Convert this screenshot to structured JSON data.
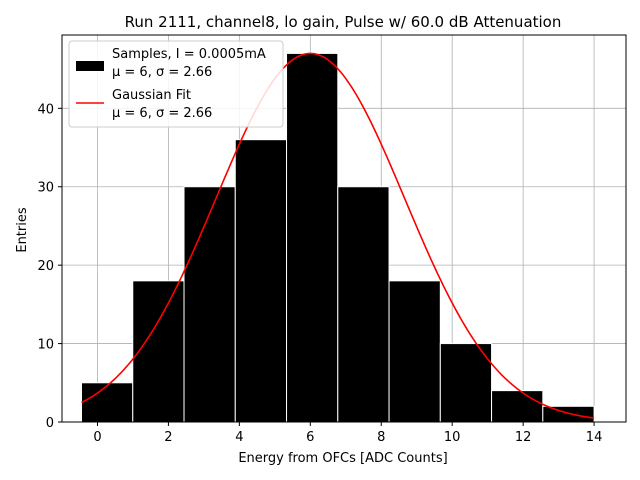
{
  "chart_data": {
    "type": "bar",
    "title": "Run 2111, channel8, lo gain, Pulse w/ 60.0 dB Attenuation",
    "xlabel": "Energy from OFCs [ADC Counts]",
    "ylabel": "Entries",
    "xlim": [
      -1.0,
      14.9
    ],
    "ylim": [
      0,
      49.35
    ],
    "xticks": [
      0,
      2,
      4,
      6,
      8,
      10,
      12,
      14
    ],
    "yticks": [
      0,
      10,
      20,
      30,
      40
    ],
    "grid": true,
    "legend_position": "top-left",
    "histogram": {
      "bin_edges": [
        -0.45,
        0.995,
        2.44,
        3.885,
        5.33,
        6.775,
        8.22,
        9.665,
        11.11,
        12.555,
        14.0
      ],
      "counts": [
        5,
        18,
        30,
        36,
        47,
        30,
        18,
        10,
        4,
        2
      ],
      "color": "#000000",
      "edge_color": "#ffffff"
    },
    "fit": {
      "type": "gaussian",
      "amplitude": 47,
      "mu": 6,
      "sigma": 2.66,
      "x_range": [
        -0.45,
        14.0
      ],
      "color": "#ff0000"
    },
    "legend": [
      {
        "label_line1": "Samples, I = 0.0005mA",
        "label_line2": "μ = 6, σ = 2.66",
        "kind": "patch",
        "color": "#000000"
      },
      {
        "label_line1": "Gaussian Fit",
        "label_line2": "μ = 6, σ = 2.66",
        "kind": "line",
        "color": "#ff0000"
      }
    ]
  }
}
